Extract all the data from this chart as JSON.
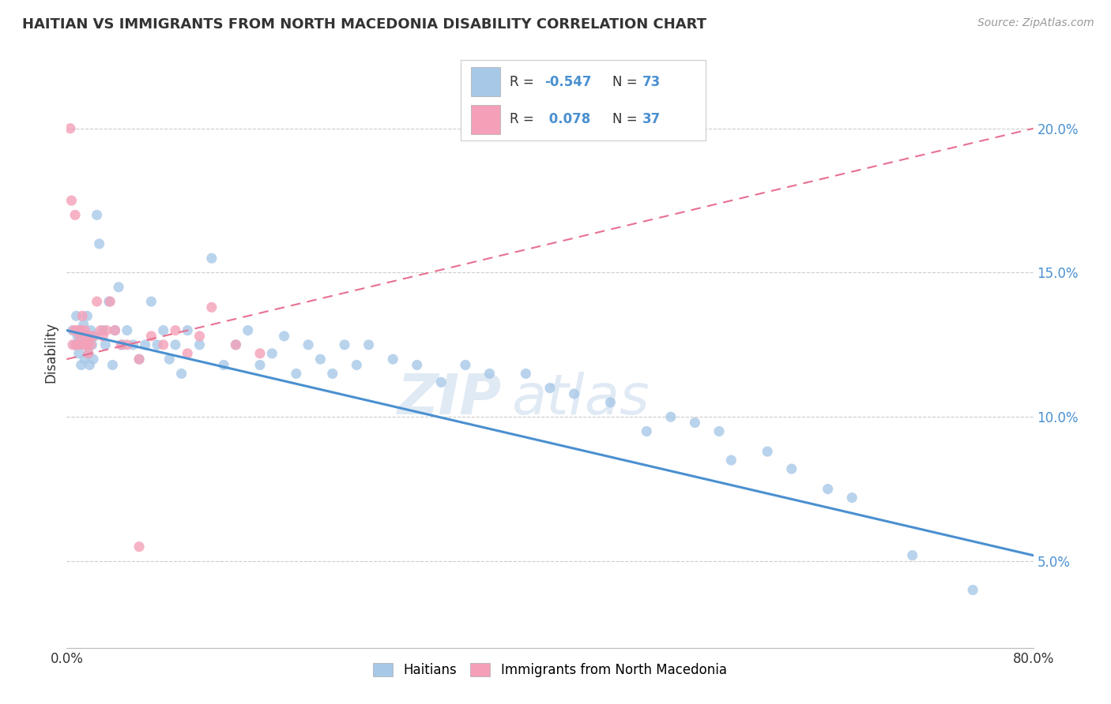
{
  "title": "HAITIAN VS IMMIGRANTS FROM NORTH MACEDONIA DISABILITY CORRELATION CHART",
  "source": "Source: ZipAtlas.com",
  "ylabel": "Disability",
  "right_yticks": [
    "5.0%",
    "10.0%",
    "15.0%",
    "20.0%"
  ],
  "right_ytick_vals": [
    0.05,
    0.1,
    0.15,
    0.2
  ],
  "xmin": 0.0,
  "xmax": 0.8,
  "ymin": 0.02,
  "ymax": 0.225,
  "color_blue": "#a8c8e8",
  "color_pink": "#f4a0b8",
  "line_blue": "#4a90d0",
  "line_pink": "#e87090",
  "watermark_zip": "ZIP",
  "watermark_atlas": "atlas",
  "blue_x": [
    0.005,
    0.007,
    0.008,
    0.009,
    0.01,
    0.011,
    0.012,
    0.013,
    0.014,
    0.015,
    0.016,
    0.017,
    0.018,
    0.019,
    0.02,
    0.021,
    0.022,
    0.023,
    0.025,
    0.027,
    0.03,
    0.032,
    0.035,
    0.038,
    0.04,
    0.043,
    0.046,
    0.05,
    0.055,
    0.06,
    0.065,
    0.07,
    0.075,
    0.08,
    0.085,
    0.09,
    0.095,
    0.1,
    0.11,
    0.12,
    0.13,
    0.14,
    0.15,
    0.16,
    0.17,
    0.18,
    0.19,
    0.2,
    0.21,
    0.22,
    0.23,
    0.24,
    0.25,
    0.27,
    0.29,
    0.31,
    0.33,
    0.35,
    0.38,
    0.4,
    0.42,
    0.45,
    0.48,
    0.5,
    0.52,
    0.54,
    0.55,
    0.58,
    0.6,
    0.63,
    0.65,
    0.7,
    0.75
  ],
  "blue_y": [
    0.13,
    0.125,
    0.135,
    0.128,
    0.122,
    0.13,
    0.118,
    0.125,
    0.132,
    0.12,
    0.128,
    0.135,
    0.122,
    0.118,
    0.13,
    0.125,
    0.12,
    0.128,
    0.17,
    0.16,
    0.13,
    0.125,
    0.14,
    0.118,
    0.13,
    0.145,
    0.125,
    0.13,
    0.125,
    0.12,
    0.125,
    0.14,
    0.125,
    0.13,
    0.12,
    0.125,
    0.115,
    0.13,
    0.125,
    0.155,
    0.118,
    0.125,
    0.13,
    0.118,
    0.122,
    0.128,
    0.115,
    0.125,
    0.12,
    0.115,
    0.125,
    0.118,
    0.125,
    0.12,
    0.118,
    0.112,
    0.118,
    0.115,
    0.115,
    0.11,
    0.108,
    0.105,
    0.095,
    0.1,
    0.098,
    0.095,
    0.085,
    0.088,
    0.082,
    0.075,
    0.072,
    0.052,
    0.04
  ],
  "pink_x": [
    0.003,
    0.004,
    0.005,
    0.006,
    0.007,
    0.008,
    0.009,
    0.01,
    0.011,
    0.012,
    0.013,
    0.014,
    0.015,
    0.016,
    0.017,
    0.018,
    0.019,
    0.02,
    0.022,
    0.025,
    0.028,
    0.03,
    0.033,
    0.036,
    0.04,
    0.045,
    0.05,
    0.06,
    0.07,
    0.08,
    0.09,
    0.1,
    0.11,
    0.12,
    0.14,
    0.16,
    0.06
  ],
  "pink_y": [
    0.2,
    0.175,
    0.125,
    0.13,
    0.17,
    0.125,
    0.13,
    0.125,
    0.128,
    0.13,
    0.135,
    0.125,
    0.13,
    0.128,
    0.125,
    0.122,
    0.128,
    0.125,
    0.128,
    0.14,
    0.13,
    0.128,
    0.13,
    0.14,
    0.13,
    0.125,
    0.125,
    0.12,
    0.128,
    0.125,
    0.13,
    0.122,
    0.128,
    0.138,
    0.125,
    0.122,
    0.055
  ]
}
